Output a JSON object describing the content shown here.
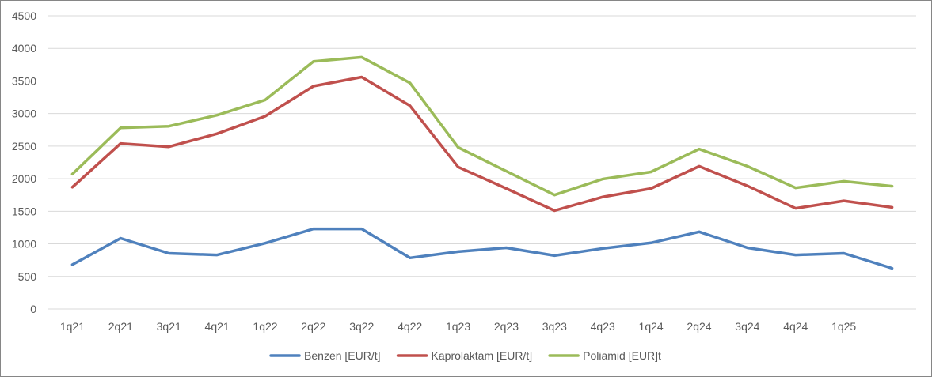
{
  "chart_data": {
    "type": "line",
    "categories": [
      "1q21",
      "2q21",
      "3q21",
      "4q21",
      "1q22",
      "2q22",
      "3q22",
      "4q22",
      "1q23",
      "2q23",
      "3q23",
      "4q23",
      "1q24",
      "2q24",
      "3q24",
      "4q24",
      "1q25",
      ""
    ],
    "ylim": [
      0,
      4500
    ],
    "yticks": [
      0,
      500,
      1000,
      1500,
      2000,
      2500,
      3000,
      3500,
      4000,
      4500
    ],
    "grid": true,
    "legend_position": "bottom",
    "series": [
      {
        "name": "Benzen [EUR/t]",
        "color": "#4f81bd",
        "values": [
          680,
          1085,
          855,
          830,
          1010,
          1230,
          1230,
          785,
          880,
          940,
          820,
          930,
          1015,
          1185,
          940,
          830,
          855,
          625
        ]
      },
      {
        "name": "Kaprolaktam [EUR/t]",
        "color": "#c0504d",
        "values": [
          1870,
          2540,
          2490,
          2690,
          2960,
          3420,
          3560,
          3120,
          2180,
          1850,
          1510,
          1720,
          1850,
          2190,
          1890,
          1545,
          1660,
          1560
        ]
      },
      {
        "name": "Poliamid [EUR]t",
        "color": "#9bbb59",
        "values": [
          2070,
          2780,
          2805,
          2975,
          3210,
          3800,
          3865,
          3470,
          2480,
          2115,
          1750,
          1995,
          2105,
          2455,
          2190,
          1860,
          1960,
          1885
        ]
      }
    ]
  }
}
